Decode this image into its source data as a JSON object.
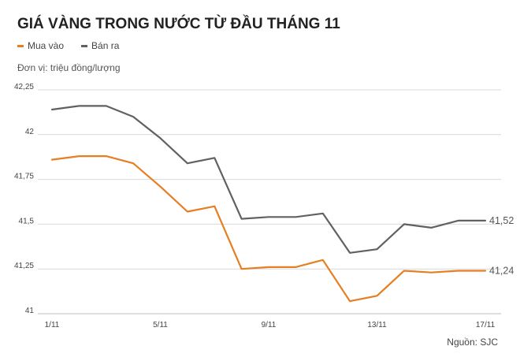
{
  "header": {
    "title": "GIÁ VÀNG TRONG NƯỚC TỪ ĐẦU THÁNG 11",
    "unit_note": "Đơn vị: triệu đồng/lượng",
    "source": "Nguồn: SJC"
  },
  "colors": {
    "buy": "#e67e22",
    "sell": "#616161",
    "grid": "#d9d9d9"
  },
  "chart_data": {
    "type": "line",
    "title": "GIÁ VÀNG TRONG NƯỚC TỪ ĐẦU THÁNG 11",
    "ylabel": "Đơn vị: triệu đồng/lượng",
    "ylim": [
      41,
      42.25
    ],
    "yticks": [
      42.25,
      42,
      41.75,
      41.5,
      41.25,
      41
    ],
    "ytick_labels": [
      "42,25",
      "42",
      "41,75",
      "41,5",
      "41,25",
      "41"
    ],
    "x": [
      1,
      2,
      3,
      4,
      5,
      6,
      7,
      8,
      9,
      10,
      11,
      12,
      13,
      14,
      15,
      16,
      17
    ],
    "xtick_values": [
      1,
      5,
      9,
      13,
      17
    ],
    "xtick_labels": [
      "1/11",
      "5/11",
      "9/11",
      "13/11",
      "17/11"
    ],
    "grid": "horizontal",
    "legend_position": "top-left",
    "series": [
      {
        "name": "Mua vào",
        "color": "#e67e22",
        "values": [
          41.86,
          41.88,
          41.88,
          41.84,
          41.71,
          41.57,
          41.6,
          41.25,
          41.26,
          41.26,
          41.3,
          41.07,
          41.1,
          41.24,
          41.23,
          41.24,
          41.24
        ],
        "end_label": "41,24"
      },
      {
        "name": "Bán ra",
        "color": "#616161",
        "values": [
          42.14,
          42.16,
          42.16,
          42.1,
          41.98,
          41.84,
          41.87,
          41.53,
          41.54,
          41.54,
          41.56,
          41.34,
          41.36,
          41.5,
          41.48,
          41.52,
          41.52
        ],
        "end_label": "41,52"
      }
    ]
  }
}
